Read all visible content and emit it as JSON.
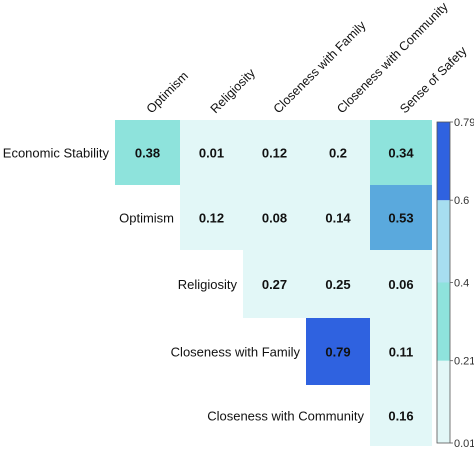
{
  "chart_data": {
    "type": "heatmap",
    "title": "",
    "columns": [
      "Optimism",
      "Religiosity",
      "Closeness with Family",
      "Closeness with Community",
      "Sense of Safety"
    ],
    "rows": [
      "Economic Stability",
      "Optimism",
      "Religiosity",
      "Closeness with Family",
      "Closeness with Community"
    ],
    "cells": [
      {
        "row": "Economic Stability",
        "col": "Optimism",
        "value": 0.38,
        "label": "0.38"
      },
      {
        "row": "Economic Stability",
        "col": "Religiosity",
        "value": 0.01,
        "label": "0.01"
      },
      {
        "row": "Economic Stability",
        "col": "Closeness with Family",
        "value": 0.12,
        "label": "0.12"
      },
      {
        "row": "Economic Stability",
        "col": "Closeness with Community",
        "value": 0.2,
        "label": "0.2"
      },
      {
        "row": "Economic Stability",
        "col": "Sense of Safety",
        "value": 0.34,
        "label": "0.34"
      },
      {
        "row": "Optimism",
        "col": "Religiosity",
        "value": 0.12,
        "label": "0.12"
      },
      {
        "row": "Optimism",
        "col": "Closeness with Family",
        "value": 0.08,
        "label": "0.08"
      },
      {
        "row": "Optimism",
        "col": "Closeness with Community",
        "value": 0.14,
        "label": "0.14"
      },
      {
        "row": "Optimism",
        "col": "Sense of Safety",
        "value": 0.53,
        "label": "0.53"
      },
      {
        "row": "Religiosity",
        "col": "Closeness with Family",
        "value": 0.27,
        "label": "0.27"
      },
      {
        "row": "Religiosity",
        "col": "Closeness with Community",
        "value": 0.25,
        "label": "0.25"
      },
      {
        "row": "Religiosity",
        "col": "Sense of Safety",
        "value": 0.06,
        "label": "0.06"
      },
      {
        "row": "Closeness with Family",
        "col": "Closeness with Community",
        "value": 0.79,
        "label": "0.79"
      },
      {
        "row": "Closeness with Family",
        "col": "Sense of Safety",
        "value": 0.11,
        "label": "0.11"
      },
      {
        "row": "Closeness with Community",
        "col": "Sense of Safety",
        "value": 0.16,
        "label": "0.16"
      }
    ],
    "color_scale": {
      "bins": [
        {
          "min": 0.01,
          "max": 0.21,
          "color": "#e2f7f7"
        },
        {
          "min": 0.21,
          "max": 0.4,
          "color": "#8ee3dc"
        },
        {
          "min": 0.4,
          "max": 0.6,
          "color": "#a7def0"
        },
        {
          "min": 0.6,
          "max": 0.79,
          "color": "#2f62e0"
        }
      ],
      "cell_colors": {
        "low": "#e2f7f7",
        "mid": "#8ee3dc",
        "high": "#5aa9dd",
        "max": "#2f62e0"
      },
      "ticks": [
        {
          "value": 0.79,
          "label": "0.79"
        },
        {
          "value": 0.6,
          "label": "0.6"
        },
        {
          "value": 0.4,
          "label": "0.4"
        },
        {
          "value": 0.21,
          "label": "0.21"
        },
        {
          "value": 0.01,
          "label": "0.01"
        }
      ]
    }
  }
}
